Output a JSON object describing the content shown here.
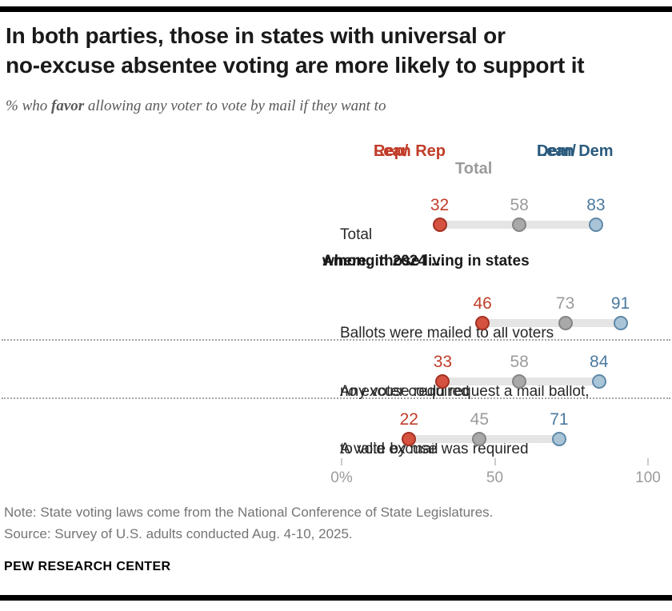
{
  "header": {
    "title_lines": [
      "In both parties, those in states with universal or",
      "no-excuse absentee voting are more likely to support it"
    ],
    "subtitle_prefix": "% who ",
    "subtitle_bold": "favor",
    "subtitle_suffix": " allowing any voter to vote by mail if they want to"
  },
  "chart_data": {
    "type": "dot-plot",
    "axis": {
      "min": 0,
      "max": 100,
      "ticks": [
        {
          "value": 0,
          "label": "0%"
        },
        {
          "value": 50,
          "label": "50"
        },
        {
          "value": 100,
          "label": "100"
        }
      ]
    },
    "series": [
      {
        "key": "rep",
        "header_lines": [
          "Rep/",
          "Lean Rep"
        ],
        "header_color": "#c13d29",
        "value_color": "#c13d29",
        "dot_fill": "#d4523f",
        "dot_border": "#a33123"
      },
      {
        "key": "total",
        "header_lines": [
          "Total"
        ],
        "header_color": "#9b9b9b",
        "value_color": "#9b9b9b",
        "dot_fill": "#a9a9a9",
        "dot_border": "#858585"
      },
      {
        "key": "dem",
        "header_lines": [
          "Dem/",
          "Lean Dem"
        ],
        "header_color": "#2b5a7d",
        "value_color": "#4c7a9f",
        "dot_fill": "#a9c4d7",
        "dot_border": "#5f89a8"
      }
    ],
    "section_header_lines": [
      "Among those living in states",
      "where, in 2024 …"
    ],
    "rows": [
      {
        "label_lines": [
          "Total"
        ],
        "values": {
          "rep": 32,
          "total": 58,
          "dem": 83
        }
      },
      {
        "label_lines": [
          "Ballots were mailed to all voters"
        ],
        "values": {
          "rep": 46,
          "total": 73,
          "dem": 91
        }
      },
      {
        "label_lines": [
          "Any voter could request a mail ballot,",
          "no excuse required"
        ],
        "values": {
          "rep": 33,
          "total": 58,
          "dem": 84
        }
      },
      {
        "label_lines": [
          "A valid excuse was required",
          "to vote by mail"
        ],
        "values": {
          "rep": 22,
          "total": 45,
          "dem": 71
        }
      }
    ],
    "track_color": "#e5e5e5"
  },
  "footer": {
    "note": "Note: State voting laws come from the National Conference of State Legislatures.",
    "source": "Source: Survey of U.S. adults conducted Aug. 4-10, 2025.",
    "brand": "PEW RESEARCH CENTER"
  }
}
